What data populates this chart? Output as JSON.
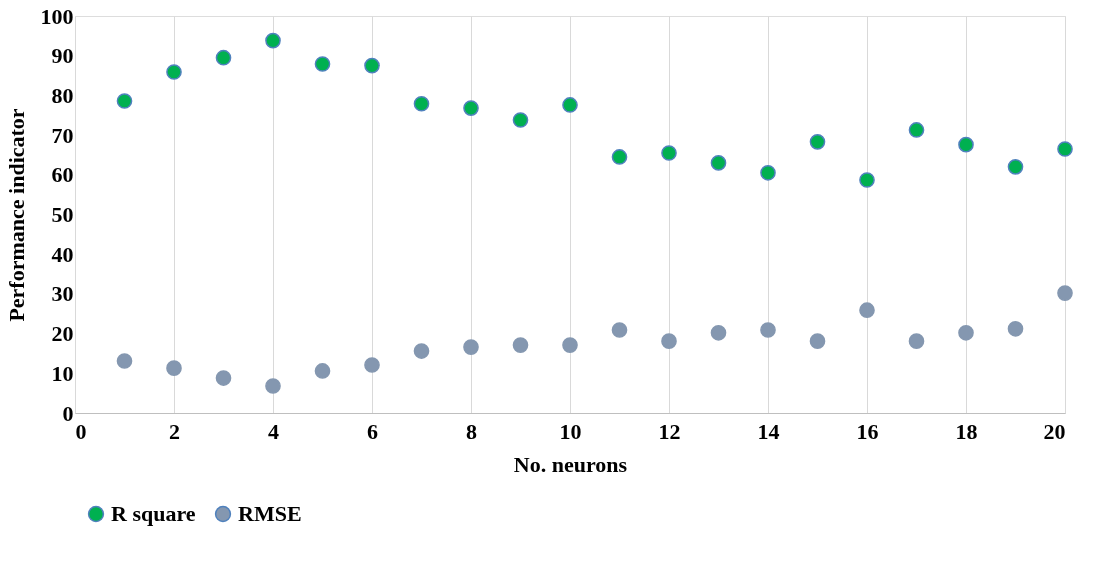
{
  "chart_data": {
    "type": "scatter",
    "xlabel": "No. neurons",
    "ylabel": "Performance indicator",
    "x": [
      1,
      2,
      3,
      4,
      5,
      6,
      7,
      8,
      9,
      10,
      11,
      12,
      13,
      14,
      15,
      16,
      17,
      18,
      19,
      20
    ],
    "series": [
      {
        "name": "R  square",
        "color": "#00b050",
        "values": [
          78.6,
          85.9,
          89.5,
          93.8,
          87.9,
          87.5,
          77.9,
          76.8,
          73.8,
          77.6,
          64.5,
          65.5,
          63,
          60.5,
          68.3,
          58.7,
          71.3,
          67.6,
          62,
          66.5
        ]
      },
      {
        "name": "RMSE",
        "color": "#8497b0",
        "values": [
          13.1,
          11.3,
          8.8,
          6.8,
          10.6,
          12.1,
          15.6,
          16.6,
          17.1,
          17.1,
          20.9,
          18.1,
          20.2,
          20.9,
          18.1,
          25.9,
          18.1,
          20.2,
          21.2,
          30.2
        ]
      }
    ],
    "xlim": [
      0,
      20
    ],
    "xticks": [
      0,
      2,
      4,
      6,
      8,
      10,
      12,
      14,
      16,
      18,
      20
    ],
    "ylim": [
      0,
      100
    ],
    "yticks": [
      0,
      10,
      20,
      30,
      40,
      50,
      60,
      70,
      80,
      90,
      100
    ],
    "grid": "x",
    "legend": "bottom",
    "marker": "circle"
  }
}
